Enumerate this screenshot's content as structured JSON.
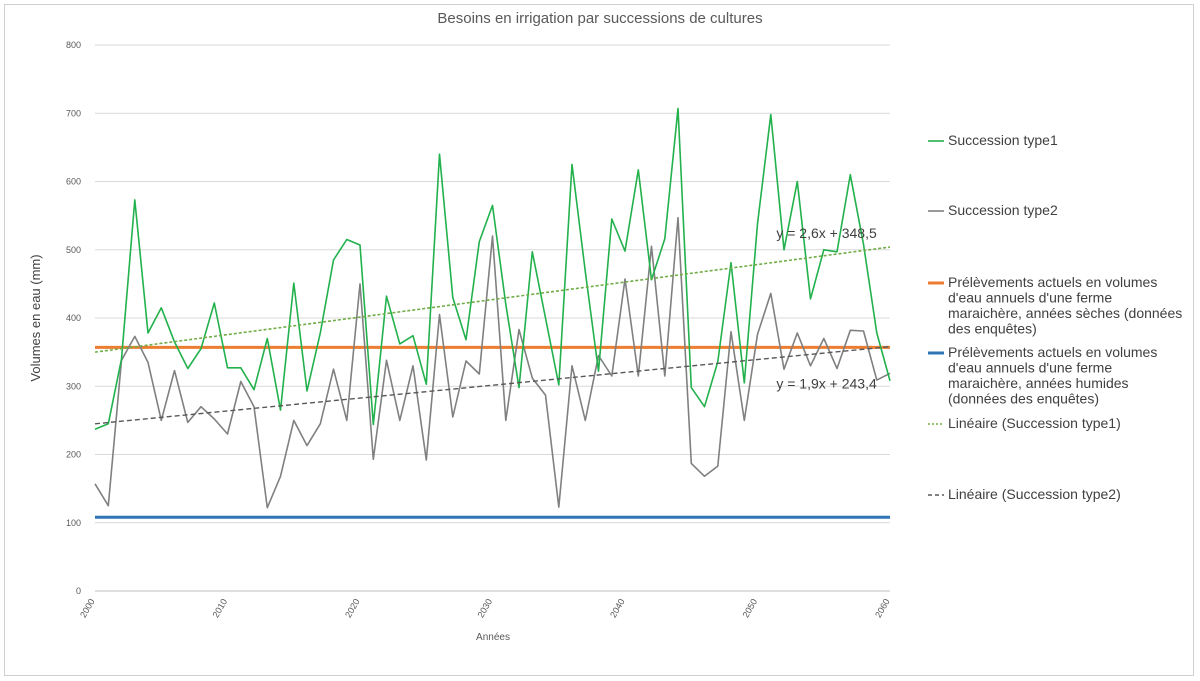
{
  "chart_data": {
    "type": "line",
    "title": "Besoins en irrigation par successions de cultures",
    "xlabel": "Années",
    "ylabel": "Volumes en eau (mm)",
    "xlim": [
      2000,
      2060
    ],
    "ylim": [
      0,
      800
    ],
    "xticks": [
      2000,
      2010,
      2020,
      2030,
      2040,
      2050,
      2060
    ],
    "yticks": [
      0,
      100,
      200,
      300,
      400,
      500,
      600,
      700,
      800
    ],
    "grid": true,
    "legend_position": "right",
    "x": [
      2000,
      2001,
      2002,
      2003,
      2004,
      2005,
      2006,
      2007,
      2008,
      2009,
      2010,
      2011,
      2012,
      2013,
      2014,
      2015,
      2016,
      2017,
      2018,
      2019,
      2020,
      2021,
      2022,
      2023,
      2024,
      2025,
      2026,
      2027,
      2028,
      2029,
      2030,
      2031,
      2032,
      2033,
      2034,
      2035,
      2036,
      2037,
      2038,
      2039,
      2040,
      2041,
      2042,
      2043,
      2044,
      2045,
      2046,
      2047,
      2048,
      2049,
      2050,
      2051,
      2052,
      2053,
      2054,
      2055,
      2056,
      2057,
      2058,
      2059,
      2060
    ],
    "series": [
      {
        "name": "Succession type1",
        "color": "#22b14c",
        "values": [
          237,
          245,
          340,
          573,
          378,
          415,
          365,
          326,
          355,
          422,
          327,
          327,
          295,
          370,
          265,
          451,
          293,
          378,
          485,
          515,
          507,
          244,
          432,
          362,
          374,
          303,
          640,
          430,
          368,
          512,
          565,
          420,
          298,
          497,
          400,
          302,
          625,
          468,
          322,
          545,
          498,
          617,
          456,
          516,
          707,
          298,
          270,
          336,
          481,
          305,
          538,
          698,
          500,
          600,
          428,
          500,
          497,
          610,
          508,
          378,
          308
        ]
      },
      {
        "name": "Succession type2",
        "color": "#808080",
        "values": [
          157,
          125,
          338,
          373,
          335,
          250,
          323,
          247,
          270,
          252,
          230,
          307,
          270,
          122,
          168,
          250,
          213,
          245,
          325,
          250,
          450,
          193,
          338,
          250,
          330,
          192,
          405,
          255,
          337,
          318,
          520,
          250,
          383,
          312,
          287,
          123,
          330,
          250,
          345,
          315,
          457,
          315,
          505,
          315,
          547,
          187,
          168,
          183,
          380,
          250,
          376,
          436,
          325,
          378,
          330,
          370,
          326,
          382,
          381,
          309,
          319
        ]
      },
      {
        "name": "Prélèvements actuels en volumes d'eau annuels d'une ferme maraichère, années sèches (données des enquêtes)",
        "color": "#ed7d31",
        "constant": 357
      },
      {
        "name": "Prélèvements actuels en volumes d'eau annuels d'une ferme maraichère, années humides (données des enquêtes)",
        "color": "#2e75b6",
        "constant": 108
      },
      {
        "name": "Linéaire (Succession type1)",
        "color": "#70ad47",
        "trend_start": 350,
        "trend_end": 504
      },
      {
        "name": "Linéaire (Succession type2)",
        "color": "#595959",
        "trend_start": 245,
        "trend_end": 358
      }
    ],
    "legend": [
      {
        "lines": [
          "Succession type1"
        ],
        "color": "#22b14c",
        "style": "solid-thin"
      },
      {
        "lines": [
          "Succession type2"
        ],
        "color": "#808080",
        "style": "solid-thin"
      },
      {
        "lines": [
          "Prélèvements actuels en volumes",
          "d'eau annuels d'une ferme",
          "maraichère, années sèches (données",
          "des enquêtes)"
        ],
        "color": "#ed7d31",
        "style": "solid-thick"
      },
      {
        "lines": [
          "Prélèvements actuels en volumes",
          "d'eau annuels d'une ferme",
          "maraichère, années humides",
          "(données des enquêtes)"
        ],
        "color": "#2e75b6",
        "style": "solid-thick"
      },
      {
        "lines": [
          "Linéaire (Succession type1)"
        ],
        "color": "#70ad47",
        "style": "dotted"
      },
      {
        "lines": [
          "Linéaire (Succession type2)"
        ],
        "color": "#595959",
        "style": "dashed"
      }
    ],
    "annotations": [
      {
        "text": "y = 2,6x + 348,5",
        "x": 2059,
        "y": 517
      },
      {
        "text": "y = 1,9x + 243,4",
        "x": 2059,
        "y": 297
      }
    ]
  }
}
